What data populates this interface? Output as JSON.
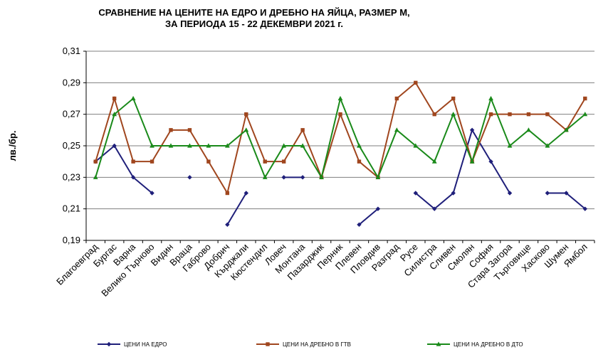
{
  "chart_data": {
    "type": "line",
    "title_line1": "СРАВНЕНИЕ НА ЦЕНИТЕ НА ЕДРО И ДРЕБНО НА ЯЙЦА, РАЗМЕР М,",
    "title_line2": "ЗА ПЕРИОДА 15 - 22 ДЕКЕМВРИ 2021 г.",
    "ylabel": "лв./бр.",
    "ylim": [
      0.19,
      0.31
    ],
    "yticks": [
      "0,19",
      "0,21",
      "0,23",
      "0,25",
      "0,27",
      "0,29",
      "0,31"
    ],
    "grid": true,
    "legend_position": "bottom",
    "categories": [
      "Благоевград",
      "Бургас",
      "Варна",
      "Велико Търново",
      "Видин",
      "Враца",
      "Габрово",
      "Добрич",
      "Кърджали",
      "Кюстендил",
      "Ловеч",
      "Монтана",
      "Пазарджик",
      "Перник",
      "Плевен",
      "Пловдив",
      "Разград",
      "Русе",
      "Силистра",
      "Сливен",
      "Смолян",
      "София",
      "Стара Загора",
      "Търговище",
      "Хасково",
      "Шумен",
      "Ямбол"
    ],
    "series": [
      {
        "name": "ЦЕНИ НА ЕДРО",
        "color": "#1f1f7a",
        "marker": "diamond",
        "values": [
          0.24,
          0.25,
          0.23,
          0.22,
          null,
          0.23,
          null,
          0.2,
          0.22,
          null,
          0.23,
          0.23,
          null,
          null,
          0.2,
          0.21,
          null,
          0.22,
          0.21,
          0.22,
          0.26,
          0.24,
          0.22,
          null,
          0.22,
          0.22,
          0.21
        ]
      },
      {
        "name": "ЦЕНИ НА ДРЕБНО В ГТВ",
        "color": "#a0461e",
        "marker": "square",
        "values": [
          0.24,
          0.28,
          0.24,
          0.24,
          0.26,
          0.26,
          0.24,
          0.22,
          0.27,
          0.24,
          0.24,
          0.26,
          0.23,
          0.27,
          0.24,
          0.23,
          0.28,
          0.29,
          0.27,
          0.28,
          0.24,
          0.27,
          0.27,
          0.27,
          0.27,
          0.26,
          0.28
        ]
      },
      {
        "name": "ЦЕНИ НА ДРЕБНО В ДТО",
        "color": "#1a8a1a",
        "marker": "triangle",
        "values": [
          0.23,
          0.27,
          0.28,
          0.25,
          0.25,
          0.25,
          0.25,
          0.25,
          0.26,
          0.23,
          0.25,
          0.25,
          0.23,
          0.28,
          0.25,
          0.23,
          0.26,
          0.25,
          0.24,
          0.27,
          0.24,
          0.28,
          0.25,
          0.26,
          0.25,
          0.26,
          0.27
        ]
      }
    ]
  }
}
